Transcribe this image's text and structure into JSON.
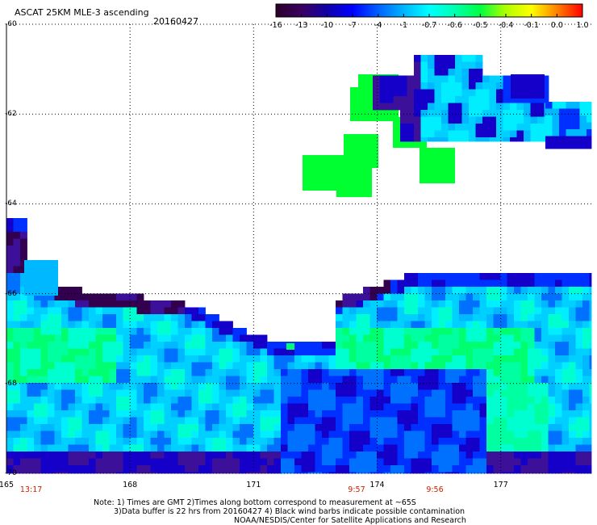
{
  "header": {
    "title": "ASCAT 25KM MLE-3 ascending",
    "date": "20160427"
  },
  "colorbar": {
    "ticks": [
      "-16",
      "-13",
      "-10",
      "-7",
      "-4",
      "-1",
      "-0.7",
      "-0.6",
      "-0.5",
      "-0.4",
      "-0.1",
      "0.0",
      "1.0"
    ],
    "colors": [
      "#2a0028",
      "#3a0060",
      "#1000a8",
      "#0000ff",
      "#0060ff",
      "#00b4ff",
      "#00ffff",
      "#00ffb0",
      "#00ff40",
      "#b0ff00",
      "#ffff00",
      "#ff8000",
      "#ff0000"
    ]
  },
  "map": {
    "lat_labels": [
      "-60",
      "-62",
      "-64",
      "-66",
      "-68",
      "-70"
    ],
    "lon_labels": [
      "165",
      "168",
      "171",
      "174",
      "177"
    ],
    "lat_range": [
      -70,
      -60
    ],
    "lon_range": [
      165,
      179.2
    ],
    "times": [
      {
        "label": "13:17",
        "lon": 165.6
      },
      {
        "label": "9:57",
        "lon": 173.5
      },
      {
        "label": "9:56",
        "lon": 175.4
      }
    ]
  },
  "notes": {
    "line1": "Note: 1) Times are GMT 2)Times along bottom correspond to measurement at ~65S",
    "line2": "3)Data buffer is 22 hrs from 20160427 4) Black wind barbs indicate possible contamination",
    "line3": "NOAA/NESDIS/Center for Satellite Applications and Research"
  }
}
